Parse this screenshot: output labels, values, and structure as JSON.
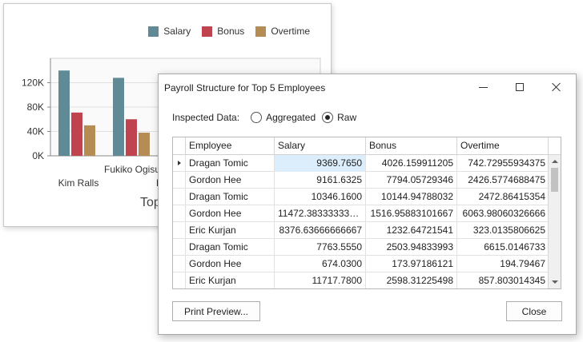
{
  "chart_data": {
    "type": "bar",
    "categories": [
      "Kim Ralls",
      "Fukiko Ogisu"
    ],
    "series": [
      {
        "name": "Salary",
        "color": "#5f8a96",
        "values": [
          140000,
          128000
        ]
      },
      {
        "name": "Bonus",
        "color": "#c0444f",
        "values": [
          71000,
          60000
        ]
      },
      {
        "name": "Overtime",
        "color": "#b58c53",
        "values": [
          50000,
          38000
        ]
      }
    ],
    "y_ticks": [
      "0K",
      "40K",
      "80K",
      "120K"
    ],
    "ylim": [
      0,
      160000
    ],
    "grid": true,
    "legend_position": "top-right",
    "partial_labels": [
      "L",
      "Top"
    ]
  },
  "dialog": {
    "title": "Payroll Structure for Top 5 Employees",
    "inspected_label": "Inspected Data:",
    "options": [
      {
        "label": "Aggregated",
        "checked": false
      },
      {
        "label": "Raw",
        "checked": true
      }
    ],
    "columns": [
      "Employee",
      "Salary",
      "Bonus",
      "Overtime"
    ],
    "rows": [
      [
        "Dragan Tomic",
        "9369.7650",
        "4026.159911205",
        "742.72955934375"
      ],
      [
        "Gordon Hee",
        "9161.6325",
        "7794.05729346",
        "2426.5774688475"
      ],
      [
        "Dragan Tomic",
        "10346.1600",
        "10144.94788032",
        "2472.86415354"
      ],
      [
        "Gordon Hee",
        "11472.383333333...",
        "1516.95883101667",
        "6063.98060326666"
      ],
      [
        "Eric Kurjan",
        "8376.63666666667",
        "1232.64721541",
        "323.0135806625"
      ],
      [
        "Dragan Tomic",
        "7763.5550",
        "2503.94833993",
        "6615.0146733"
      ],
      [
        "Gordon Hee",
        "674.0300",
        "173.97186121",
        "194.79467"
      ],
      [
        "Eric Kurjan",
        "11717.7800",
        "2598.31225498",
        "857.803014345"
      ]
    ],
    "print_label": "Print Preview...",
    "close_label": "Close"
  }
}
